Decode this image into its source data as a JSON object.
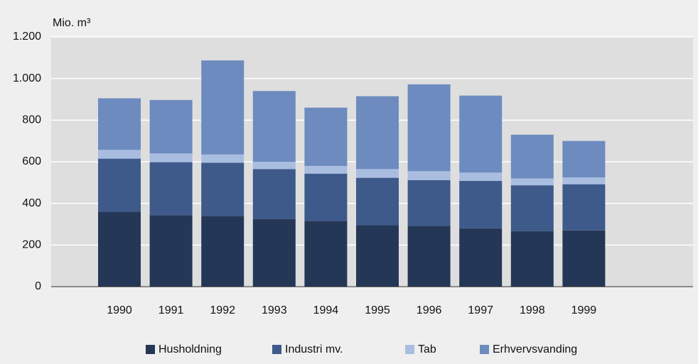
{
  "chart_data": {
    "type": "stacked_bar",
    "y_label": "Mio. m³",
    "categories": [
      "1990",
      "1991",
      "1992",
      "1993",
      "1994",
      "1995",
      "1996",
      "1997",
      "1998",
      "1999"
    ],
    "series": [
      {
        "name": "Husholdning",
        "color": "#253756",
        "values": [
          360,
          343,
          340,
          325,
          315,
          295,
          292,
          280,
          267,
          270
        ]
      },
      {
        "name": "Industri mv.",
        "color": "#3d5a8a",
        "values": [
          255,
          255,
          255,
          240,
          228,
          228,
          220,
          228,
          220,
          222
        ]
      },
      {
        "name": "Tab",
        "color": "#a9bde0",
        "values": [
          42,
          42,
          40,
          35,
          37,
          42,
          43,
          40,
          33,
          33
        ]
      },
      {
        "name": "Erhvervsvanding",
        "color": "#6d8bbf",
        "values": [
          248,
          257,
          452,
          340,
          280,
          350,
          417,
          370,
          210,
          175
        ]
      }
    ],
    "ylim": [
      0,
      1200
    ],
    "yticks": [
      0,
      200,
      400,
      600,
      800,
      {
        "value": 1000,
        "label": "1.000"
      },
      {
        "value": 1200,
        "label": "1.200"
      }
    ],
    "grid": true,
    "legend": "bottom"
  }
}
